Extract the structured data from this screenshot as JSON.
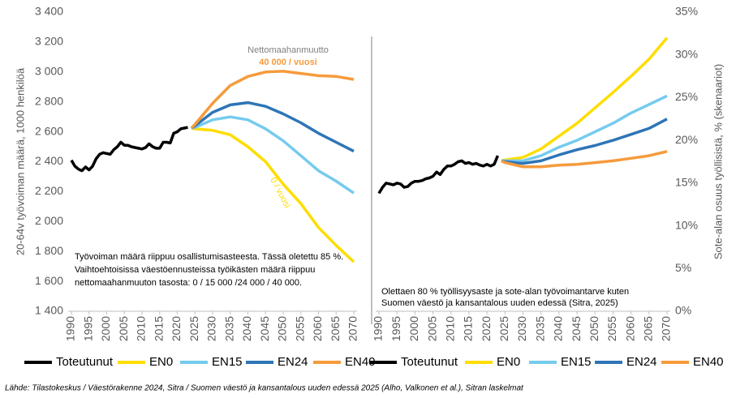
{
  "chart_data": [
    {
      "type": "line",
      "y_label": "20-64v työvoiman määrä, 1000 henkilöä",
      "xlim": [
        1990,
        2070
      ],
      "xticks": [
        1990,
        1995,
        2000,
        2005,
        2010,
        2015,
        2020,
        2025,
        2030,
        2035,
        2040,
        2045,
        2050,
        2055,
        2060,
        2065,
        2070
      ],
      "ylim": [
        1400,
        3400
      ],
      "yticks": [
        {
          "value": 1400,
          "label": "1 400"
        },
        {
          "value": 1600,
          "label": "1 600"
        },
        {
          "value": 1800,
          "label": "1 800"
        },
        {
          "value": 2000,
          "label": "2 000"
        },
        {
          "value": 2200,
          "label": "2 200"
        },
        {
          "value": 2400,
          "label": "2 400"
        },
        {
          "value": 2600,
          "label": "2 600"
        },
        {
          "value": 2800,
          "label": "2 800"
        },
        {
          "value": 3000,
          "label": "3 000"
        },
        {
          "value": 3200,
          "label": "3 200"
        },
        {
          "value": 3400,
          "label": "3 400"
        }
      ],
      "y_axis_side": "left",
      "grid": false,
      "series": [
        {
          "name": "Toteutunut",
          "color": "#000000",
          "x": [
            1990,
            1991,
            1992,
            1993,
            1994,
            1995,
            1996,
            1997,
            1998,
            1999,
            2000,
            2001,
            2002,
            2003,
            2004,
            2005,
            2006,
            2007,
            2008,
            2009,
            2010,
            2011,
            2012,
            2013,
            2014,
            2015,
            2016,
            2017,
            2018,
            2019,
            2020,
            2021,
            2022,
            2023
          ],
          "values": [
            2410,
            2370,
            2350,
            2340,
            2365,
            2345,
            2370,
            2420,
            2450,
            2460,
            2455,
            2450,
            2480,
            2500,
            2530,
            2510,
            2510,
            2500,
            2495,
            2490,
            2485,
            2495,
            2520,
            2500,
            2490,
            2490,
            2530,
            2530,
            2525,
            2590,
            2600,
            2620,
            2625,
            2630
          ]
        },
        {
          "name": "EN0",
          "color": "#ffdd00",
          "x": [
            2024,
            2025,
            2030,
            2035,
            2040,
            2045,
            2050,
            2055,
            2060,
            2065,
            2070
          ],
          "values": [
            2625,
            2620,
            2610,
            2580,
            2500,
            2400,
            2250,
            2120,
            1960,
            1840,
            1730
          ]
        },
        {
          "name": "EN15",
          "color": "#75cbee",
          "x": [
            2024,
            2025,
            2030,
            2035,
            2040,
            2045,
            2050,
            2055,
            2060,
            2065,
            2070
          ],
          "values": [
            2625,
            2630,
            2680,
            2700,
            2680,
            2620,
            2540,
            2440,
            2340,
            2270,
            2190
          ]
        },
        {
          "name": "EN24",
          "color": "#2e75b6",
          "x": [
            2024,
            2025,
            2030,
            2035,
            2040,
            2045,
            2050,
            2055,
            2060,
            2065,
            2070
          ],
          "values": [
            2625,
            2640,
            2730,
            2780,
            2795,
            2770,
            2720,
            2660,
            2590,
            2530,
            2470
          ]
        },
        {
          "name": "EN40",
          "color": "#f59b3c",
          "x": [
            2024,
            2025,
            2030,
            2035,
            2040,
            2045,
            2050,
            2055,
            2060,
            2065,
            2070
          ],
          "values": [
            2625,
            2650,
            2790,
            2910,
            2970,
            3000,
            3005,
            2990,
            2975,
            2970,
            2950
          ]
        }
      ],
      "annotations": [
        {
          "text": "Nettomaahanmuutto",
          "color": "#808080"
        },
        {
          "text": "40 000 / vuosi",
          "color": "#f59b3c"
        },
        {
          "text": "0 / vuosi",
          "color": "#ffdd00"
        }
      ],
      "notes": [
        "Työvoiman määrä riippuu osallistumisasteesta. Tässä oletettu 85 %.",
        "Vaihtoehtoisissa väestöennusteissa työikästen määrä riippuu",
        "nettomaahanmuuton tasosta: 0 / 15 000 /24 000 / 40 000."
      ]
    },
    {
      "type": "line",
      "y_label": "Sote-alan osuus työllisistä, % (skenaariot)",
      "xlim": [
        1990,
        2070
      ],
      "xticks": [
        1990,
        1995,
        2000,
        2005,
        2010,
        2015,
        2020,
        2025,
        2030,
        2035,
        2040,
        2045,
        2050,
        2055,
        2060,
        2065,
        2070
      ],
      "ylim": [
        0,
        35
      ],
      "yticks": [
        {
          "value": 0,
          "label": "0%"
        },
        {
          "value": 5,
          "label": "5%"
        },
        {
          "value": 10,
          "label": "10%"
        },
        {
          "value": 15,
          "label": "15%"
        },
        {
          "value": 20,
          "label": "20%"
        },
        {
          "value": 25,
          "label": "25%"
        },
        {
          "value": 30,
          "label": "30%"
        },
        {
          "value": 35,
          "label": "35%"
        }
      ],
      "y_axis_side": "right",
      "grid": false,
      "series": [
        {
          "name": "Toteutunut",
          "color": "#000000",
          "x": [
            1990,
            1991,
            1992,
            1993,
            1994,
            1995,
            1996,
            1997,
            1998,
            1999,
            2000,
            2001,
            2002,
            2003,
            2004,
            2005,
            2006,
            2007,
            2008,
            2009,
            2010,
            2011,
            2012,
            2013,
            2014,
            2015,
            2016,
            2017,
            2018,
            2019,
            2020,
            2021,
            2022,
            2023
          ],
          "values": [
            13.8,
            14.5,
            15.0,
            14.9,
            14.8,
            15.0,
            14.9,
            14.5,
            14.6,
            15.0,
            15.2,
            15.2,
            15.3,
            15.5,
            15.6,
            15.8,
            16.3,
            16.0,
            16.6,
            17.0,
            17.0,
            17.2,
            17.5,
            17.6,
            17.3,
            17.4,
            17.2,
            17.3,
            17.1,
            17.0,
            17.2,
            17.0,
            17.2,
            18.2
          ]
        },
        {
          "name": "EN0",
          "color": "#ffdd00",
          "x": [
            2024,
            2025,
            2030,
            2035,
            2040,
            2045,
            2050,
            2055,
            2060,
            2065,
            2070
          ],
          "values": [
            17.6,
            17.7,
            18.0,
            19.0,
            20.5,
            22.0,
            23.8,
            25.6,
            27.5,
            29.5,
            32.0
          ]
        },
        {
          "name": "EN15",
          "color": "#75cbee",
          "x": [
            2024,
            2025,
            2030,
            2035,
            2040,
            2045,
            2050,
            2055,
            2060,
            2065,
            2070
          ],
          "values": [
            17.6,
            17.6,
            17.6,
            18.2,
            19.2,
            20.0,
            21.0,
            22.0,
            23.2,
            24.2,
            25.2
          ]
        },
        {
          "name": "EN24",
          "color": "#2e75b6",
          "x": [
            2024,
            2025,
            2030,
            2035,
            2040,
            2045,
            2050,
            2055,
            2060,
            2065,
            2070
          ],
          "values": [
            17.6,
            17.5,
            17.3,
            17.6,
            18.3,
            18.9,
            19.4,
            20.0,
            20.7,
            21.4,
            22.5
          ]
        },
        {
          "name": "EN40",
          "color": "#f59b3c",
          "x": [
            2024,
            2025,
            2030,
            2035,
            2040,
            2045,
            2050,
            2055,
            2060,
            2065,
            2070
          ],
          "values": [
            17.6,
            17.4,
            16.9,
            16.9,
            17.1,
            17.2,
            17.4,
            17.6,
            17.9,
            18.2,
            18.7
          ]
        }
      ],
      "annotations": [],
      "notes": [
        "Olettaen 80 % työllisyysaste ja sote-alan työvoimantarve kuten",
        "Suomen väestö ja kansantalous uuden edessä (Sitra, 2025)"
      ]
    }
  ],
  "source": "Lähde: Tilastokeskus / Väestörakenne 2024, Sitra / Suomen väestö ja kansantalous uuden edessä 2025 (Alho, Valkonen et al.), Sitran laskelmat"
}
